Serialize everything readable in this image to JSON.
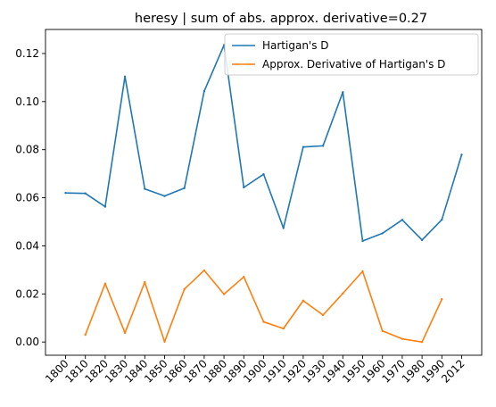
{
  "chart_data": {
    "type": "line",
    "title": "heresy | sum of  abs. approx. derivative=0.27",
    "xlabel": "",
    "ylabel": "",
    "categories": [
      "1800",
      "1810",
      "1820",
      "1830",
      "1840",
      "1850",
      "1860",
      "1870",
      "1880",
      "1890",
      "1900",
      "1910",
      "1920",
      "1930",
      "1940",
      "1950",
      "1960",
      "1970",
      "1980",
      "1990",
      "2012"
    ],
    "ylim": [
      -0.0055,
      0.13
    ],
    "yticks": [
      0.0,
      0.02,
      0.04,
      0.06,
      0.08,
      0.1,
      0.12
    ],
    "ytick_labels": [
      "0.00",
      "0.02",
      "0.04",
      "0.06",
      "0.08",
      "0.10",
      "0.12"
    ],
    "grid": false,
    "legend_position": "upper right",
    "series": [
      {
        "name": "Hartigan's D",
        "color": "#1f77b4",
        "values": [
          0.062,
          0.0618,
          0.0563,
          0.1104,
          0.0637,
          0.0607,
          0.064,
          0.1043,
          0.1235,
          0.0643,
          0.0698,
          0.0474,
          0.0811,
          0.0816,
          0.1039,
          0.042,
          0.0452,
          0.0508,
          0.0424,
          0.0509,
          0.0779
        ]
      },
      {
        "name": "Approx. Derivative of Hartigan's D",
        "color": "#ff7f0e",
        "values": [
          null,
          0.003,
          0.0243,
          0.0038,
          0.0249,
          0.0001,
          0.022,
          0.0298,
          0.0199,
          0.0271,
          0.0084,
          0.0056,
          0.0172,
          0.0112,
          0.0202,
          0.0294,
          0.0046,
          0.0013,
          0.0,
          0.0178,
          null
        ]
      }
    ]
  }
}
